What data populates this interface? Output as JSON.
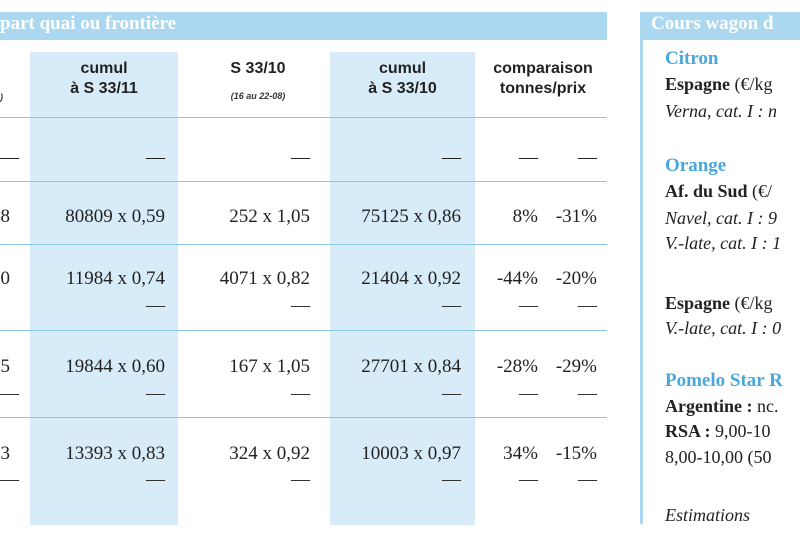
{
  "left_header": "part quai ou frontière",
  "right_header": "Cours wagon d",
  "columns": {
    "c0_sub": ")",
    "c1": [
      "cumul",
      "à S 33/11"
    ],
    "c2": [
      "S 33/10"
    ],
    "c2_sub": "(16 au 22-08)",
    "c3": [
      "cumul",
      "à S 33/10"
    ],
    "c4": [
      "comparaison",
      "tonnes/prix"
    ]
  },
  "rows": [
    {
      "c0": "—",
      "c1": "—",
      "c2": "—",
      "c3": "—",
      "c4a": "—",
      "c4b": "—"
    },
    {
      "c0": "8",
      "c1": "80809 x 0,59",
      "c2": "252 x 1,05",
      "c3": "75125 x 0,86",
      "c4a": "8%",
      "c4b": "-31%"
    },
    {
      "c0": "0",
      "c1": "11984 x 0,74",
      "c2": "4071 x 0,82",
      "c3": "21404 x 0,92",
      "c4a": "-44%",
      "c4b": "-20%"
    },
    {
      "c0": "5",
      "c1": "19844 x 0,60",
      "c2": "167 x 1,05",
      "c3": "27701 x 0,84",
      "c4a": "-28%",
      "c4b": "-29%"
    },
    {
      "c0": "3",
      "c1": "13393 x 0,83",
      "c2": "324 x 0,92",
      "c3": "10003 x 0,97",
      "c4a": "34%",
      "c4b": "-15%"
    }
  ],
  "dash": "—",
  "sidebar": {
    "citron": "Citron",
    "espagne1": "Espagne",
    "espagne1_unit": " (€/kg",
    "verna": "Verna, cat. I : n",
    "orange": "Orange",
    "afsud": "Af. du Sud",
    "afsud_unit": " (€/",
    "navel": "Navel, cat. I : 9",
    "vlate1": "V.-late, cat. I : 1",
    "espagne2": "Espagne",
    "espagne2_unit": " (€/kg",
    "vlate2": "V.-late, cat. I : 0",
    "pomelo": "Pomelo Star R",
    "argentine": "Argentine :",
    "argentine_val": " nc.",
    "rsa": "RSA :",
    "rsa_val": "  9,00-10",
    "rsa_line2": "8,00-10,00 (50",
    "estimations": "Estimations"
  }
}
